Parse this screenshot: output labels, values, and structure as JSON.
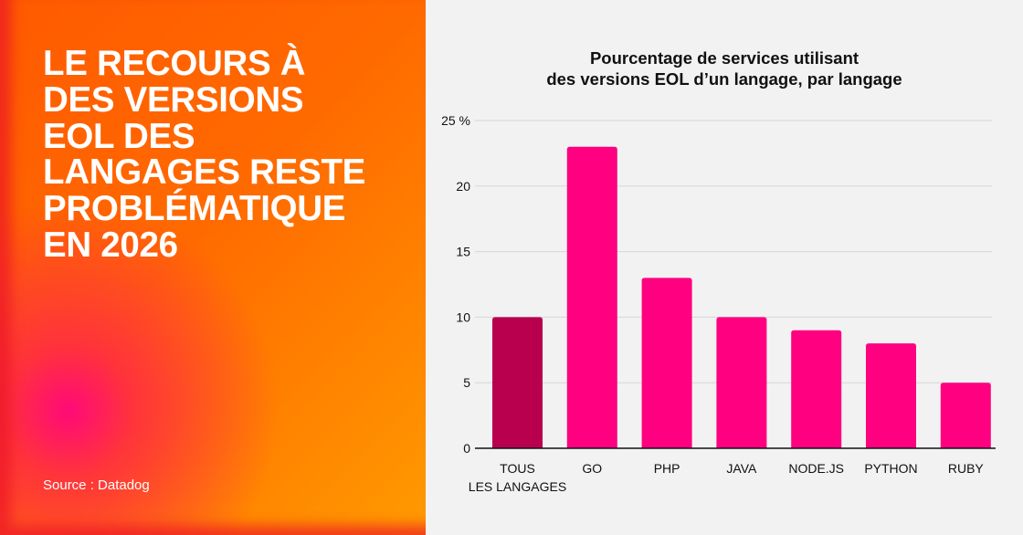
{
  "headline": "LE RECOURS À DES VERSIONS EOL DES LANGAGES RESTE PROBLÉMATIQUE EN 2026",
  "headline_lines": [
    "LE RECOURS À",
    "DES VERSIONS",
    "EOL DES",
    "LANGAGES RESTE",
    "PROBLÉMATIQUE",
    "EN 2026"
  ],
  "source": "Source : Datadog",
  "colors": {
    "highlight_bar": "#b8004f",
    "bar": "#ff0080",
    "panel_gradient": [
      "#ff0a78",
      "#ff5a00",
      "#ff9a00"
    ]
  },
  "chart_data": {
    "type": "bar",
    "title_lines": [
      "Pourcentage de services utilisant",
      "des versions EOL d’un langage, par langage"
    ],
    "categories": [
      [
        "TOUS",
        "LES LANGAGES"
      ],
      [
        "GO"
      ],
      [
        "PHP"
      ],
      [
        "JAVA"
      ],
      [
        "NODE.JS"
      ],
      [
        "PYTHON"
      ],
      [
        "RUBY"
      ]
    ],
    "values": [
      10,
      23,
      13,
      10,
      9,
      8,
      5
    ],
    "highlight_index": 0,
    "ylim": [
      0,
      25
    ],
    "yticks": [
      0,
      5,
      10,
      15,
      20,
      25
    ],
    "ytick_labels": [
      "0",
      "5",
      "10",
      "15",
      "20",
      "25 %"
    ],
    "grid": true,
    "xlabel": "",
    "ylabel": ""
  }
}
